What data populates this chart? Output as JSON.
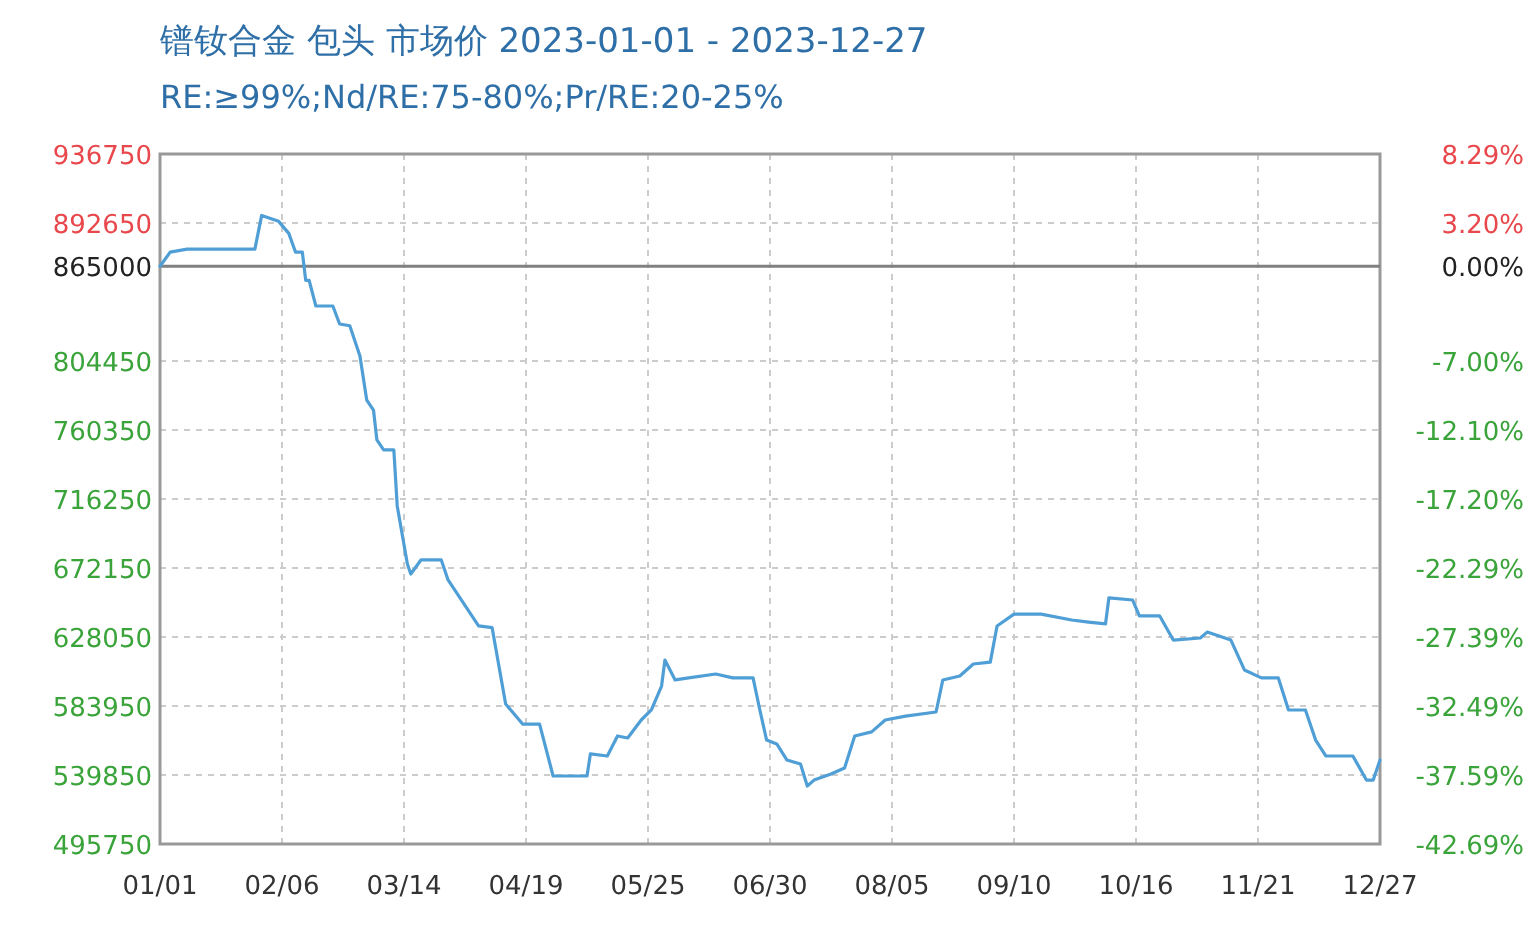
{
  "chart_data": {
    "type": "line",
    "title": "镨钕合金 包头 市场价 2023-01-01 - 2023-12-27",
    "subtitle": "RE:≥99%;Nd/RE:75-80%;Pr/RE:20-25%",
    "x": [
      "2023-01-01",
      "2023-01-04",
      "2023-01-09",
      "2023-01-29",
      "2023-01-31",
      "2023-02-05",
      "2023-02-08",
      "2023-02-10",
      "2023-02-12",
      "2023-02-13",
      "2023-02-14",
      "2023-02-16",
      "2023-02-21",
      "2023-02-23",
      "2023-02-26",
      "2023-03-01",
      "2023-03-03",
      "2023-03-05",
      "2023-03-06",
      "2023-03-08",
      "2023-03-11",
      "2023-03-12",
      "2023-03-15",
      "2023-03-16",
      "2023-03-19",
      "2023-03-25",
      "2023-03-27",
      "2023-04-05",
      "2023-04-09",
      "2023-04-13",
      "2023-04-18",
      "2023-04-23",
      "2023-04-27",
      "2023-05-07",
      "2023-05-08",
      "2023-05-13",
      "2023-05-16",
      "2023-05-19",
      "2023-05-23",
      "2023-05-26",
      "2023-05-29",
      "2023-05-30",
      "2023-06-02",
      "2023-06-06",
      "2023-06-14",
      "2023-06-19",
      "2023-06-25",
      "2023-06-27",
      "2023-06-29",
      "2023-07-02",
      "2023-07-05",
      "2023-07-09",
      "2023-07-11",
      "2023-07-13",
      "2023-07-18",
      "2023-07-22",
      "2023-07-25",
      "2023-07-30",
      "2023-08-03",
      "2023-08-09",
      "2023-08-18",
      "2023-08-20",
      "2023-08-25",
      "2023-08-29",
      "2023-09-03",
      "2023-09-05",
      "2023-09-10",
      "2023-09-18",
      "2023-09-27",
      "2023-10-02",
      "2023-10-07",
      "2023-10-08",
      "2023-10-15",
      "2023-10-17",
      "2023-10-23",
      "2023-10-27",
      "2023-11-04",
      "2023-11-06",
      "2023-11-13",
      "2023-11-17",
      "2023-11-22",
      "2023-11-27",
      "2023-11-30",
      "2023-12-05",
      "2023-12-08",
      "2023-12-11",
      "2023-12-19",
      "2023-12-23",
      "2023-12-25",
      "2023-12-27"
    ],
    "series": [
      {
        "color": "#4f9fd6",
        "values": [
          865000,
          874000,
          876000,
          876000,
          897500,
          893700,
          886000,
          874000,
          874000,
          856000,
          856000,
          839600,
          839600,
          828100,
          827000,
          807600,
          779500,
          773100,
          754000,
          747600,
          747600,
          711800,
          674700,
          668300,
          677300,
          677300,
          664500,
          635100,
          634000,
          585200,
          572400,
          572400,
          539200,
          539200,
          553300,
          552000,
          564800,
          563500,
          575000,
          581400,
          596700,
          613300,
          600600,
          601900,
          604400,
          601900,
          601900,
          581400,
          562200,
          559700,
          549400,
          546900,
          532800,
          536600,
          540500,
          544300,
          564800,
          567400,
          575000,
          577500,
          580100,
          600600,
          603100,
          610800,
          612000,
          635100,
          642700,
          642700,
          638900,
          637600,
          636400,
          653000,
          651700,
          641500,
          641500,
          626100,
          627400,
          631200,
          626100,
          607000,
          601900,
          601900,
          581400,
          581400,
          562200,
          552000,
          552000,
          536600,
          536600,
          549400
        ]
      }
    ],
    "xlim": [
      "2023-01-01",
      "2023-12-27"
    ],
    "xticks": [
      {
        "value": "2023-01-01",
        "label": "01/01"
      },
      {
        "value": "2023-02-06",
        "label": "02/06"
      },
      {
        "value": "2023-03-14",
        "label": "03/14"
      },
      {
        "value": "2023-04-19",
        "label": "04/19"
      },
      {
        "value": "2023-05-25",
        "label": "05/25"
      },
      {
        "value": "2023-06-30",
        "label": "06/30"
      },
      {
        "value": "2023-08-05",
        "label": "08/05"
      },
      {
        "value": "2023-09-10",
        "label": "09/10"
      },
      {
        "value": "2023-10-16",
        "label": "10/16"
      },
      {
        "value": "2023-11-21",
        "label": "11/21"
      },
      {
        "value": "2023-12-27",
        "label": "12/27"
      }
    ],
    "ylim": [
      495750,
      936750
    ],
    "yticks": [
      936750,
      892650,
      865000,
      804450,
      760350,
      716250,
      672150,
      628050,
      583950,
      539850,
      495750
    ],
    "y2lim": [
      -42.69,
      8.29
    ],
    "y2ticks": [
      {
        "value": 8.29,
        "label": "8.29%"
      },
      {
        "value": 3.2,
        "label": "3.20%"
      },
      {
        "value": 0,
        "label": "0.00%"
      },
      {
        "value": -7,
        "label": "-7.00%"
      },
      {
        "value": -12.1,
        "label": "-12.10%"
      },
      {
        "value": -17.2,
        "label": "-17.20%"
      },
      {
        "value": -22.29,
        "label": "-22.29%"
      },
      {
        "value": -27.39,
        "label": "-27.39%"
      },
      {
        "value": -32.49,
        "label": "-32.49%"
      },
      {
        "value": -37.59,
        "label": "-37.59%"
      },
      {
        "value": -42.69,
        "label": "-42.69%"
      }
    ],
    "ref_lines": [
      {
        "axis": "y",
        "value": 865000,
        "color": "#808080"
      }
    ],
    "grid": true,
    "marker": "none",
    "line_style": "solid"
  }
}
